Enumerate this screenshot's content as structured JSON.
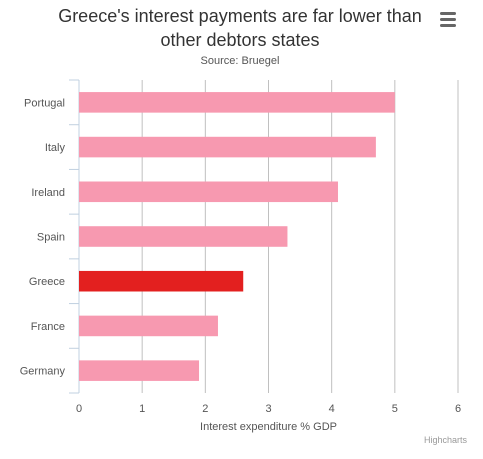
{
  "header": {
    "title_line1": "Greece's interest payments are far lower than",
    "title_line2": "other debtors states",
    "subtitle": "Source: Bruegel"
  },
  "menu": {
    "icon": "hamburger-menu-icon"
  },
  "credits": "Highcharts",
  "colors": {
    "bar_default": "#f799b0",
    "bar_highlight": "#e3201f",
    "grid": "#c0c0c0",
    "axis_line": "#c0d0e0",
    "label": "#555555"
  },
  "chart_data": {
    "type": "bar",
    "orientation": "horizontal",
    "title": "Greece's interest payments are far lower than other debtors states",
    "subtitle": "Source: Bruegel",
    "categories": [
      "Portugal",
      "Italy",
      "Ireland",
      "Spain",
      "Greece",
      "France",
      "Germany"
    ],
    "values": [
      5.0,
      4.7,
      4.1,
      3.3,
      2.6,
      2.2,
      1.9
    ],
    "highlight": "Greece",
    "xlabel": "Interest expenditure % GDP",
    "ylabel": "",
    "xlim": [
      0,
      6
    ],
    "xticks": [
      "0",
      "1",
      "2",
      "3",
      "4",
      "5",
      "6"
    ],
    "grid": true,
    "legend": "none"
  }
}
